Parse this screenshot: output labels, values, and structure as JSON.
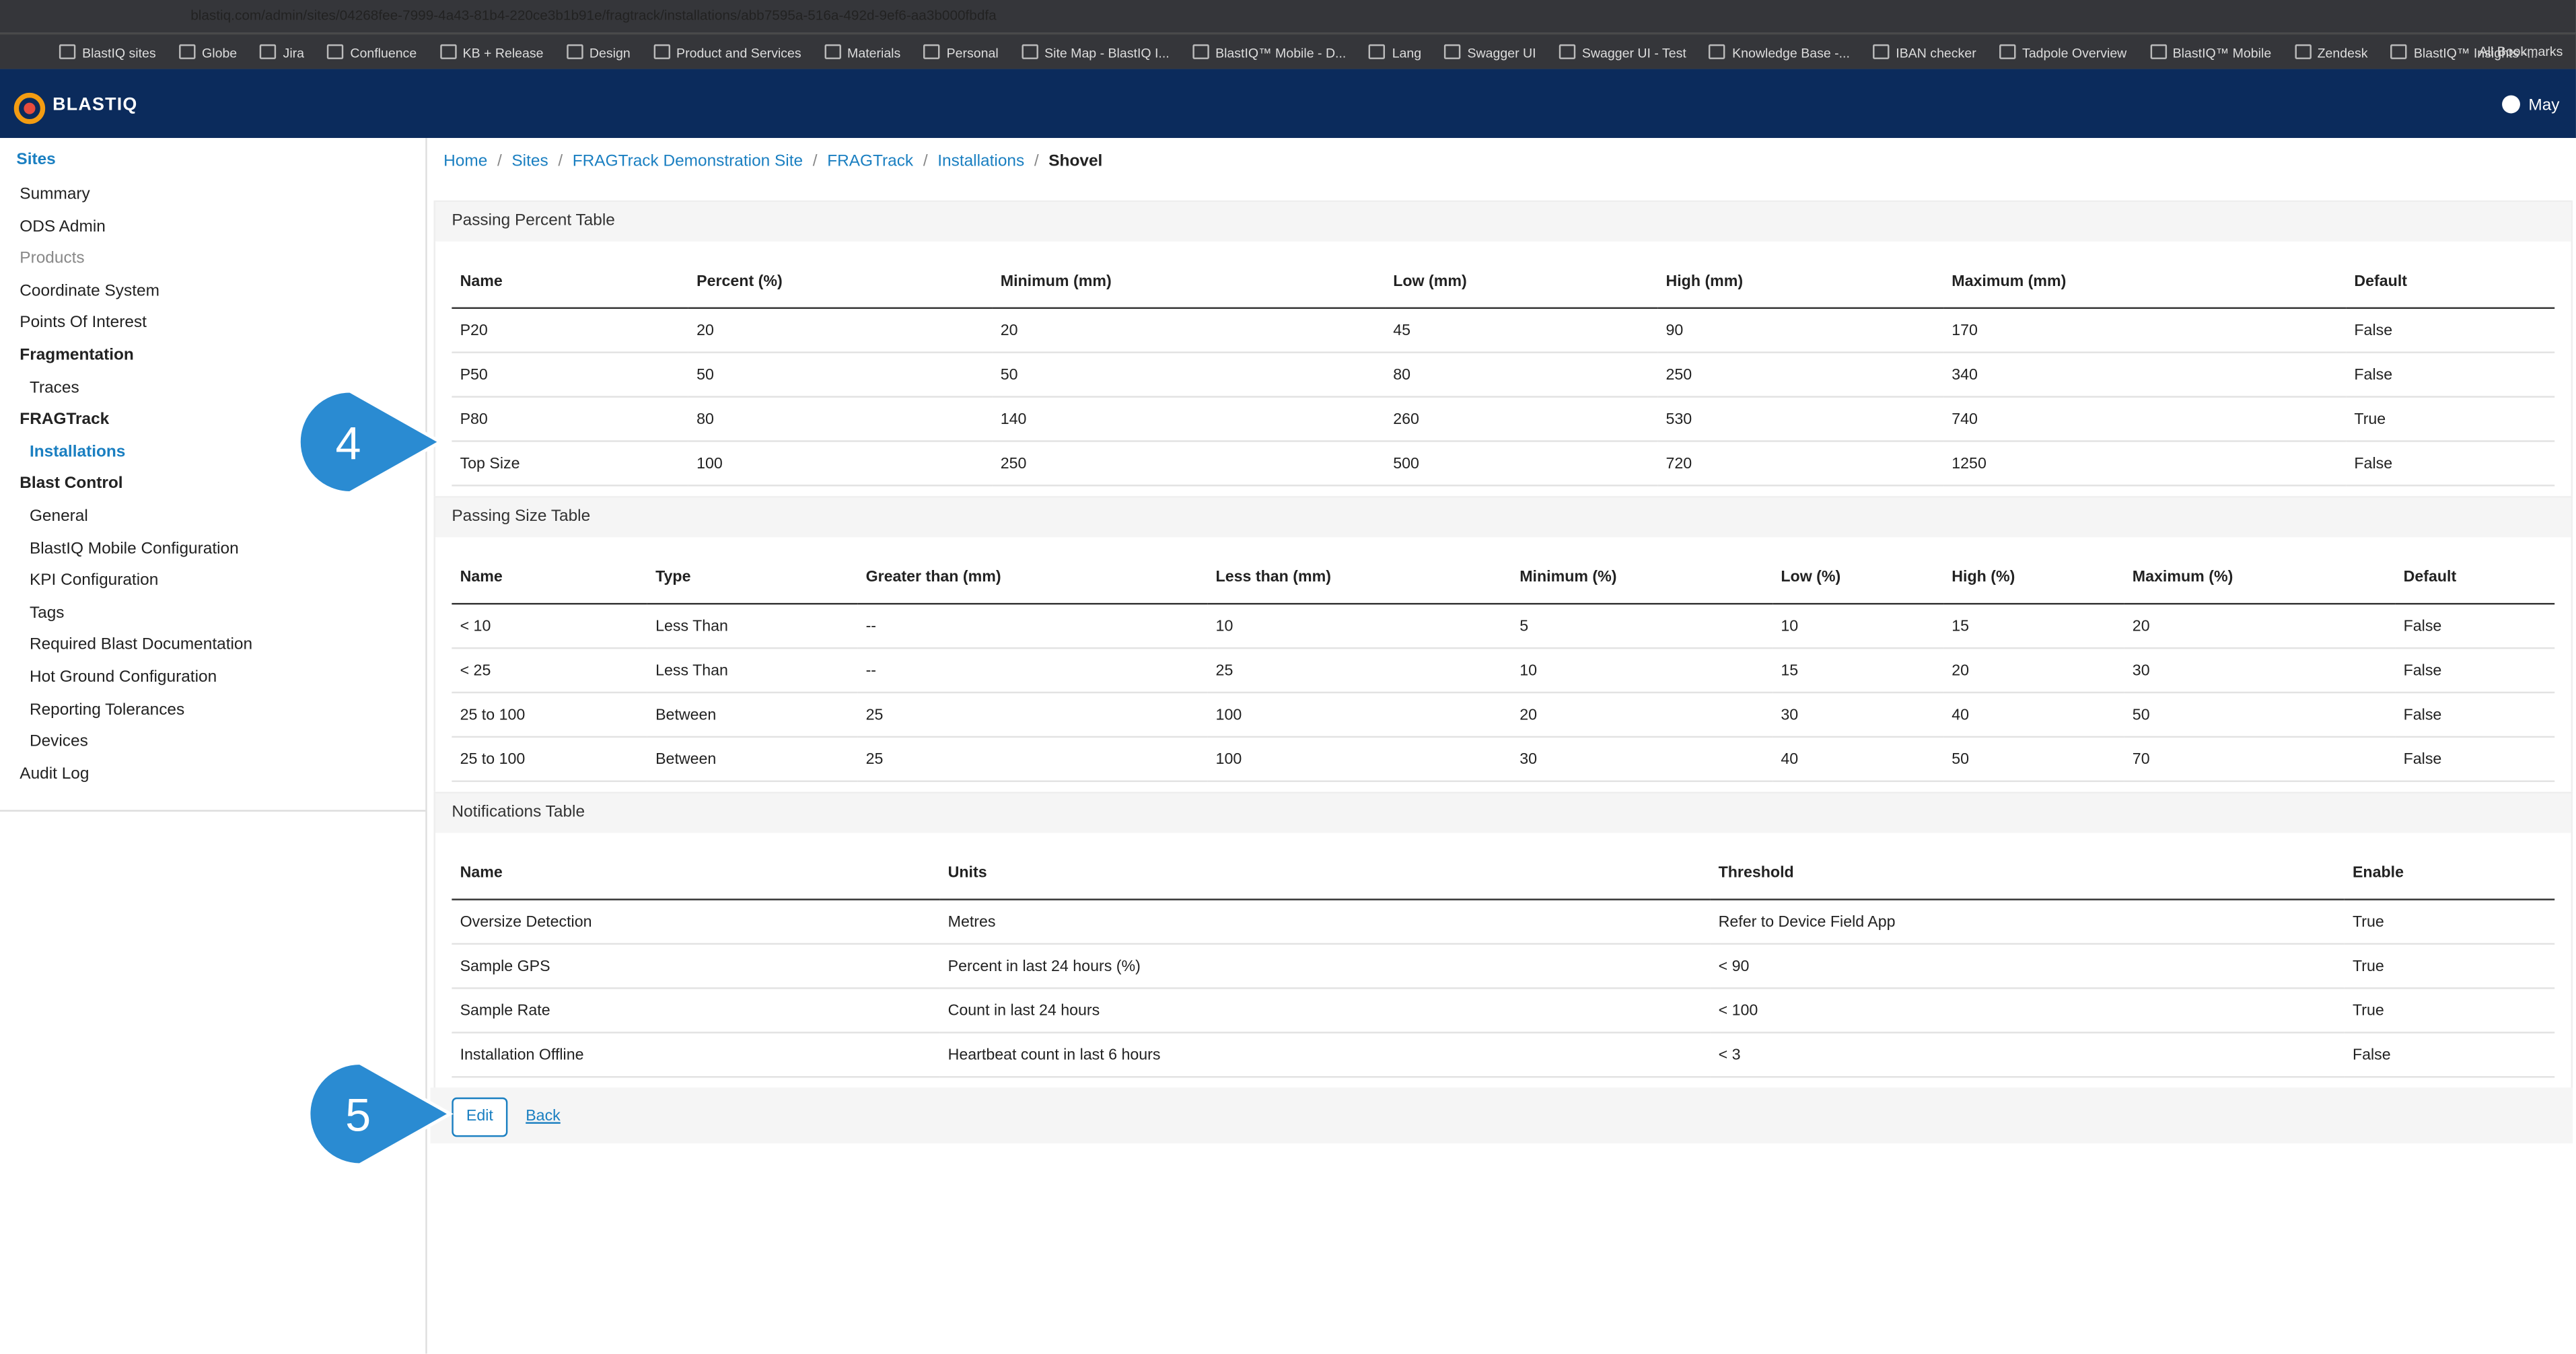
{
  "browser": {
    "url": "blastiq.com/admin/sites/04268fee-7999-4a43-81b4-220ce3b1b91e/fragtrack/installations/abb7595a-516a-492d-9ef6-aa3b000fbdfa",
    "bookmarks": [
      "BlastIQ sites",
      "Globe",
      "Jira",
      "Confluence",
      "KB + Release",
      "Design",
      "Product and Services",
      "Materials",
      "Personal",
      "Site Map - BlastIQ I...",
      "BlastIQ™ Mobile - D...",
      "Lang",
      "Swagger UI",
      "Swagger UI - Test",
      "Knowledge Base -...",
      "IBAN checker",
      "Tadpole Overview",
      "BlastIQ™ Mobile",
      "Zendesk",
      "BlastIQ™ Insights -..."
    ],
    "all_bookmarks": "All Bookmarks"
  },
  "header": {
    "logo": "BLASTIQ",
    "user": "May"
  },
  "sidebar": {
    "title": "Sites",
    "items": [
      {
        "label": "Summary"
      },
      {
        "label": "ODS Admin"
      },
      {
        "label": "Products"
      },
      {
        "label": "Coordinate System"
      },
      {
        "label": "Points Of Interest"
      },
      {
        "label": "Fragmentation",
        "children": [
          "Traces"
        ]
      },
      {
        "label": "FRAGTrack",
        "children": [
          "Installations"
        ]
      },
      {
        "label": "Blast Control",
        "children": [
          "General",
          "BlastIQ Mobile Configuration",
          "KPI Configuration",
          "Tags",
          "Required Blast Documentation",
          "Hot Ground Configuration",
          "Reporting Tolerances",
          "Devices"
        ]
      },
      {
        "label": "Audit Log"
      }
    ]
  },
  "breadcrumb": [
    "Home",
    "Sites",
    "FRAGTrack Demonstration Site",
    "FRAGTrack",
    "Installations",
    "Shovel"
  ],
  "tables": [
    {
      "title": "Passing Percent Table",
      "columns": [
        "Name",
        "Percent (%)",
        "Minimum (mm)",
        "Low (mm)",
        "High (mm)",
        "Maximum (mm)",
        "Default"
      ],
      "rows": [
        [
          "P20",
          20,
          20,
          45,
          90,
          170,
          "False"
        ],
        [
          "P50",
          50,
          50,
          80,
          250,
          340,
          "False"
        ],
        [
          "P80",
          80,
          140,
          260,
          530,
          740,
          "True"
        ],
        [
          "Top Size",
          100,
          250,
          500,
          720,
          1250,
          "False"
        ]
      ]
    },
    {
      "title": "Passing Size Table",
      "columns": [
        "Name",
        "Type",
        "Greater than (mm)",
        "Less than (mm)",
        "Minimum (%)",
        "Low (%)",
        "High (%)",
        "Maximum (%)",
        "Default"
      ],
      "rows": [
        [
          "< 10",
          "Less Than",
          "--",
          10,
          5,
          10,
          15,
          20,
          "False"
        ],
        [
          "< 25",
          "Less Than",
          "--",
          25,
          10,
          15,
          20,
          30,
          "False"
        ],
        [
          "25 to 100",
          "Between",
          25,
          100,
          20,
          30,
          40,
          50,
          "False"
        ],
        [
          "25 to 100",
          "Between",
          25,
          100,
          30,
          40,
          50,
          70,
          "False"
        ]
      ]
    },
    {
      "title": "Notifications Table",
      "columns": [
        "Name",
        "Units",
        "Threshold",
        "Enable"
      ],
      "rows": [
        [
          "Oversize Detection",
          "Metres",
          "Refer to Device Field App",
          "True"
        ],
        [
          "Sample GPS",
          "Percent in last 24 hours (%)",
          "< 90",
          "True"
        ],
        [
          "Sample Rate",
          "Count in last 24 hours",
          "< 100",
          "True"
        ],
        [
          "Installation Offline",
          "Heartbeat count in last 6 hours",
          "< 3",
          "False"
        ]
      ]
    }
  ],
  "actions": {
    "edit": "Edit",
    "back": "Back"
  },
  "callouts": [
    "4",
    "5"
  ]
}
